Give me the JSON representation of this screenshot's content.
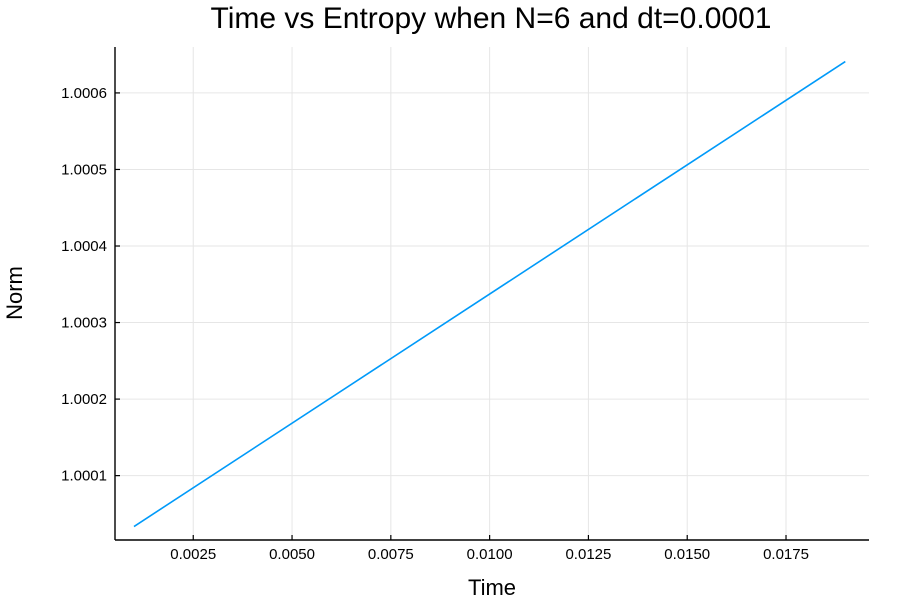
{
  "chart_data": {
    "type": "line",
    "title": "Time vs Entropy when N=6 and dt=0.0001",
    "xlabel": "Time",
    "ylabel": "Norm",
    "xlim": [
      0.00052,
      0.0196
    ],
    "ylim": [
      1.0000159,
      1.00066
    ],
    "x_ticks": [
      0.0025,
      0.005,
      0.0075,
      0.01,
      0.0125,
      0.015,
      0.0175
    ],
    "x_tick_labels": [
      "0.0025",
      "0.0050",
      "0.0075",
      "0.0100",
      "0.0125",
      "0.0150",
      "0.0175"
    ],
    "y_ticks": [
      1.0001,
      1.0002,
      1.0003,
      1.0004,
      1.0005,
      1.0006
    ],
    "y_tick_labels": [
      "1.0001",
      "1.0002",
      "1.0003",
      "1.0004",
      "1.0005",
      "1.0006"
    ],
    "grid": true,
    "legend": "none",
    "series": [
      {
        "color": "#009af9",
        "x": [
          0.001,
          0.019
        ],
        "y": [
          1.0000335,
          1.000641
        ]
      }
    ]
  }
}
